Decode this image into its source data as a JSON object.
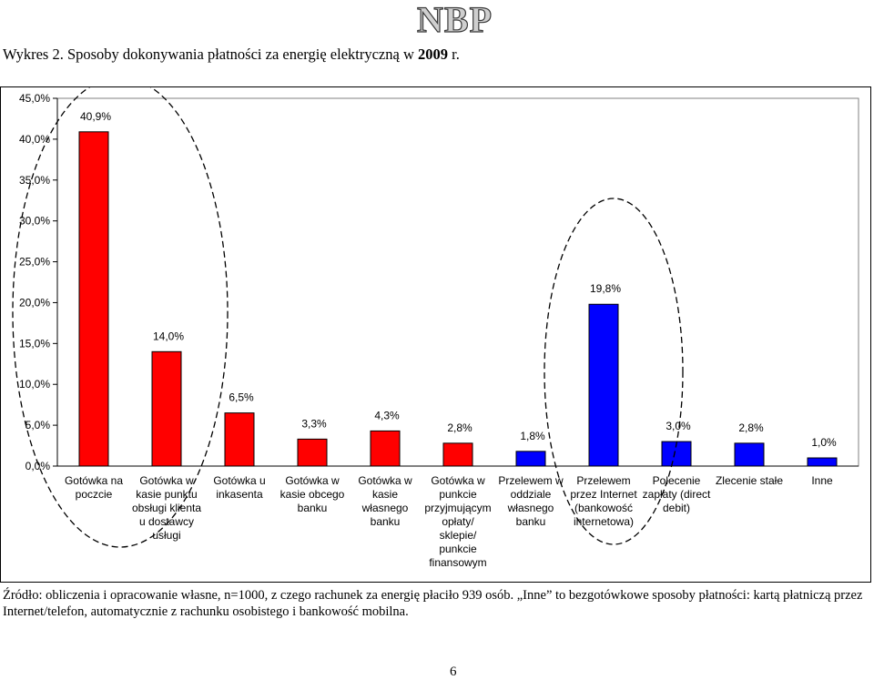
{
  "header": {
    "logo_text": "NBP",
    "caption_prefix": "Wykres 2. Sposoby dokonywania płatności za energię elektryczną w ",
    "caption_year": "2009",
    "caption_suffix": " r."
  },
  "chart_data": {
    "type": "bar",
    "title": "",
    "xlabel": "",
    "ylabel": "",
    "ylim": [
      0,
      45
    ],
    "ytick_step": 5,
    "ytick_labels": [
      "0,0%",
      "5,0%",
      "10,0%",
      "15,0%",
      "20,0%",
      "25,0%",
      "30,0%",
      "35,0%",
      "40,0%",
      "45,0%"
    ],
    "grid": false,
    "legend": "none",
    "categories": [
      [
        "Gotówka na",
        "poczcie"
      ],
      [
        "Gotówka w",
        "kasie punktu",
        "obsługi klienta",
        "u dostawcy",
        "usługi"
      ],
      [
        "Gotówka u",
        "inkasenta"
      ],
      [
        "Gotówka w",
        "kasie obcego",
        "banku"
      ],
      [
        "Gotówka w",
        "kasie",
        "własnego",
        "banku"
      ],
      [
        "Gotówka w",
        "punkcie",
        "przyjmującym",
        "opłaty/",
        "sklepie/",
        "punkcie",
        "finansowym"
      ],
      [
        "Przelewem w",
        "oddziale",
        "własnego",
        "banku"
      ],
      [
        "Przelewem",
        "przez Internet",
        "(bankowość",
        "internetowa)"
      ],
      [
        "Polecenie",
        "zapłaty (direct",
        "debit)"
      ],
      [
        "Zlecenie stałe"
      ],
      [
        "Inne"
      ]
    ],
    "values": [
      40.9,
      14.0,
      6.5,
      3.3,
      4.3,
      2.8,
      1.8,
      19.8,
      3.0,
      2.8,
      1.0
    ],
    "value_labels": [
      "40,9%",
      "14,0%",
      "6,5%",
      "3,3%",
      "4,3%",
      "2,8%",
      "1,8%",
      "19,8%",
      "3,0%",
      "2,8%",
      "1,0%"
    ],
    "colors": [
      "#ff0000",
      "#ff0000",
      "#ff0000",
      "#ff0000",
      "#ff0000",
      "#ff0000",
      "#0000ff",
      "#0000ff",
      "#0000ff",
      "#0000ff",
      "#0000ff"
    ],
    "annotations": [
      "dashed ellipse around cash categories",
      "dashed ellipse around transfer categories"
    ]
  },
  "footer": {
    "source": "Źródło: obliczenia i opracowanie własne, n=1000, z czego rachunek za energię płaciło 939 osób. „Inne” to bezgotówkowe sposoby płatności: kartą płatniczą przez Internet/telefon, automatycznie z rachunku osobistego i bankowość mobilna.",
    "page_number": "6"
  }
}
